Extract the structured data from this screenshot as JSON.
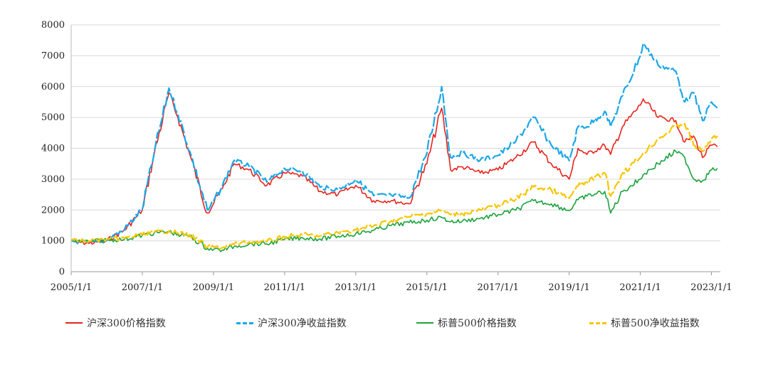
{
  "chart_data": {
    "type": "line",
    "title": "",
    "xlabel": "",
    "ylabel": "",
    "ylim": [
      0,
      8000
    ],
    "yticks": [
      0,
      1000,
      2000,
      3000,
      4000,
      5000,
      6000,
      7000,
      8000
    ],
    "xlim": [
      "2005/1/1",
      "2023/4/1"
    ],
    "xticks": [
      "2005/1/1",
      "2007/1/1",
      "2009/1/1",
      "2011/1/1",
      "2013/1/1",
      "2015/1/1",
      "2017/1/1",
      "2019/1/1",
      "2021/1/1",
      "2023/1/1"
    ],
    "grid": "horizontal",
    "legend_position": "bottom",
    "x": [
      "2005/1/1",
      "2005/7/1",
      "2006/1/1",
      "2006/7/1",
      "2007/1/1",
      "2007/5/1",
      "2007/10/1",
      "2008/1/1",
      "2008/5/1",
      "2008/11/1",
      "2009/4/1",
      "2009/8/1",
      "2010/1/1",
      "2010/7/1",
      "2011/1/1",
      "2011/7/1",
      "2012/1/1",
      "2012/7/1",
      "2013/1/1",
      "2013/7/1",
      "2014/1/1",
      "2014/7/1",
      "2015/1/1",
      "2015/6/1",
      "2015/9/1",
      "2016/1/1",
      "2016/7/1",
      "2017/1/1",
      "2017/7/1",
      "2018/1/1",
      "2018/7/1",
      "2019/1/1",
      "2019/4/1",
      "2019/7/1",
      "2020/1/1",
      "2020/3/1",
      "2020/7/1",
      "2021/1/1",
      "2021/2/1",
      "2021/7/1",
      "2022/1/1",
      "2022/4/1",
      "2022/7/1",
      "2022/10/1",
      "2023/1/1",
      "2023/3/1"
    ],
    "series": [
      {
        "name": "沪深300价格指数",
        "color": "#e8231c",
        "dash": false,
        "values": [
          990,
          920,
          1000,
          1350,
          2000,
          3800,
          5800,
          5000,
          3800,
          1900,
          2700,
          3500,
          3300,
          2800,
          3200,
          3100,
          2600,
          2500,
          2800,
          2300,
          2300,
          2200,
          3500,
          5300,
          3300,
          3400,
          3200,
          3300,
          3700,
          4200,
          3500,
          3000,
          4000,
          3800,
          4100,
          3800,
          4700,
          5400,
          5600,
          5000,
          4900,
          4200,
          4400,
          3700,
          4100,
          4050
        ]
      },
      {
        "name": "沪深300净收益指数",
        "color": "#1aa7e8",
        "dash": true,
        "values": [
          1000,
          930,
          1010,
          1370,
          2030,
          3860,
          5950,
          5120,
          3900,
          1950,
          2780,
          3610,
          3420,
          2910,
          3350,
          3260,
          2740,
          2660,
          2990,
          2470,
          2480,
          2390,
          3830,
          6000,
          3700,
          3850,
          3620,
          3770,
          4230,
          5000,
          4100,
          3600,
          4700,
          4700,
          5200,
          4700,
          5700,
          7000,
          7400,
          6700,
          6500,
          5500,
          5800,
          4900,
          5500,
          5300
        ]
      },
      {
        "name": "标普500价格指数",
        "color": "#1aa33c",
        "dash": false,
        "values": [
          1000,
          980,
          1030,
          1050,
          1180,
          1250,
          1300,
          1200,
          1150,
          750,
          700,
          820,
          900,
          900,
          1050,
          1100,
          1060,
          1150,
          1230,
          1340,
          1500,
          1590,
          1670,
          1760,
          1620,
          1640,
          1730,
          1850,
          2000,
          2300,
          2200,
          1980,
          2330,
          2450,
          2600,
          1900,
          2600,
          3000,
          3150,
          3500,
          3900,
          3700,
          3000,
          2950,
          3300,
          3350
        ]
      },
      {
        "name": "标普500净收益指数",
        "color": "#f7c600",
        "dash": true,
        "values": [
          1000,
          990,
          1050,
          1080,
          1200,
          1280,
          1320,
          1250,
          1200,
          800,
          780,
          890,
          960,
          970,
          1130,
          1200,
          1160,
          1270,
          1350,
          1480,
          1650,
          1780,
          1880,
          1980,
          1850,
          1880,
          2000,
          2150,
          2350,
          2750,
          2650,
          2380,
          2780,
          2900,
          3200,
          2450,
          3200,
          3700,
          3850,
          4300,
          4700,
          4800,
          4100,
          3900,
          4300,
          4400
        ]
      }
    ]
  }
}
